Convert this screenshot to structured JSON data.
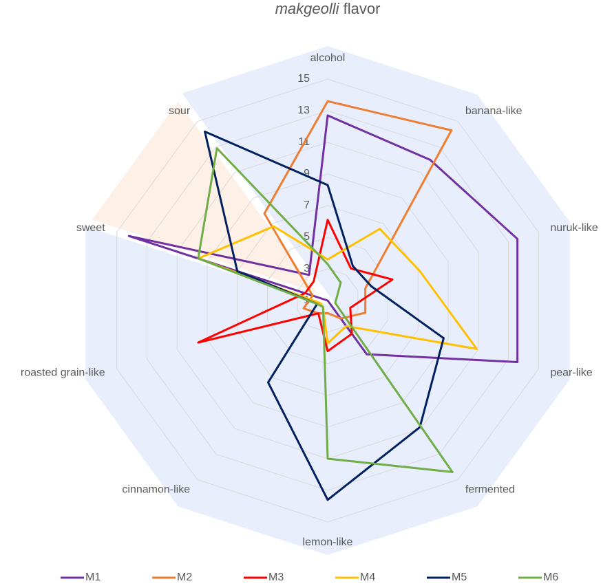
{
  "chart_data": {
    "type": "radar",
    "title": {
      "italic": "makgeolli",
      "rest": "flavor"
    },
    "categories": [
      "alcohol",
      "banana-like",
      "nuruk-like",
      "pear-like",
      "fermented",
      "lemon-like",
      "cinnamon-like",
      "roasted grain-like",
      "sweet",
      "sour"
    ],
    "ylim": [
      1,
      15
    ],
    "yticks": [
      1,
      3,
      5,
      7,
      9,
      11,
      13,
      15
    ],
    "grid": true,
    "legend": "bottom",
    "series": [
      {
        "name": "M1",
        "color": "#7030a0",
        "values": [
          12.7,
          12,
          13.6,
          13.6,
          5.2,
          1,
          1,
          1,
          14.2,
          3
        ]
      },
      {
        "name": "M2",
        "color": "#ed7d31",
        "values": [
          13.6,
          14.3,
          3.5,
          3.5,
          2.4,
          1.8,
          2,
          2.6,
          2,
          7.8
        ]
      },
      {
        "name": "M3",
        "color": "#ff0000",
        "values": [
          6.1,
          3.5,
          5.3,
          2.5,
          3.6,
          4.2,
          2,
          9.6,
          2.5,
          2.5
        ]
      },
      {
        "name": "M4",
        "color": "#ffc000",
        "values": [
          3.6,
          6.6,
          7.1,
          10.9,
          3,
          3.7,
          1.5,
          1.5,
          9.6,
          6.8
        ]
      },
      {
        "name": "M5",
        "color": "#002060",
        "values": [
          8.3,
          3.7,
          3.9,
          8.7,
          10.9,
          13.6,
          7.4,
          1.7,
          7,
          14.2
        ]
      },
      {
        "name": "M6",
        "color": "#70ad47",
        "values": [
          3.3,
          2.4,
          1.6,
          1.5,
          14.4,
          11,
          1.5,
          1.7,
          9.6,
          12.9
        ]
      }
    ]
  }
}
